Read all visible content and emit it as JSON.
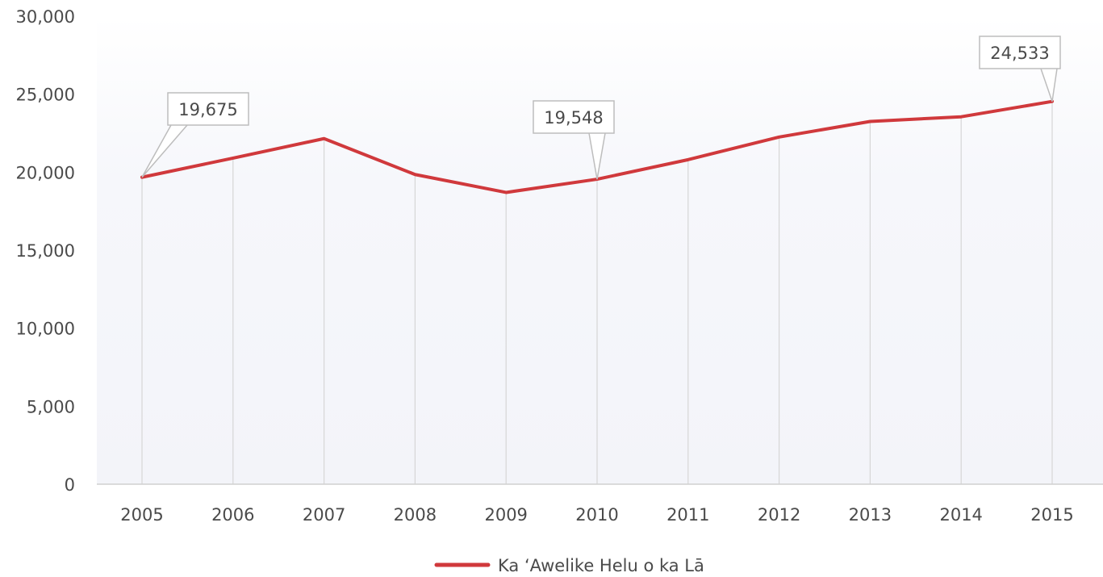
{
  "chart_data": {
    "type": "line",
    "x": [
      "2005",
      "2006",
      "2007",
      "2008",
      "2009",
      "2010",
      "2011",
      "2012",
      "2013",
      "2014",
      "2015"
    ],
    "series": [
      {
        "name": "Ka ʻAwelike Helu o ka Lā",
        "values": [
          19675,
          20900,
          22150,
          19850,
          18700,
          19548,
          20800,
          22250,
          23250,
          23550,
          24533
        ],
        "color": "#d0393c"
      }
    ],
    "y_ticks": [
      "0",
      "5,000",
      "10,000",
      "15,000",
      "20,000",
      "25,000",
      "30,000"
    ],
    "ylim": [
      0,
      30000
    ],
    "annotations": [
      {
        "index": 0,
        "label": "19,675"
      },
      {
        "index": 5,
        "label": "19,548"
      },
      {
        "index": 10,
        "label": "24,533"
      }
    ],
    "grid": "vertical",
    "legend_position": "bottom-center"
  }
}
